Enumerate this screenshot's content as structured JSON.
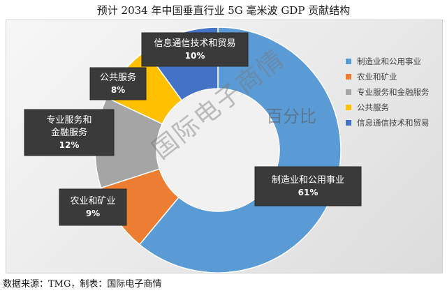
{
  "title": "预计 2034 年中国垂直行业 5G 毫米波 GDP 贡献结构",
  "source": "数据来源：TMG，制表：国际电子商情",
  "watermark": {
    "series_label": "百分比",
    "brand": "国际电子商情"
  },
  "chart_data": {
    "type": "pie",
    "donut": true,
    "series_name": "百分比",
    "categories": [
      "制造业和公用事业",
      "农业和矿业",
      "专业服务和金融服务",
      "公共服务",
      "信息通信技术和贸易"
    ],
    "values": [
      61,
      9,
      12,
      8,
      10
    ],
    "value_labels": [
      "61%",
      "9%",
      "12%",
      "8%",
      "10%"
    ],
    "colors": [
      "#5B9BD5",
      "#ED7D31",
      "#A5A5A5",
      "#FFC000",
      "#4472C4"
    ],
    "legend_position": "right"
  }
}
